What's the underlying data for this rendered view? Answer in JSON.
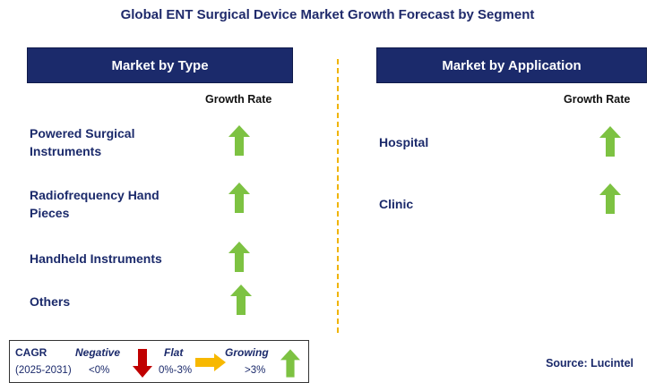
{
  "title": "Global ENT Surgical Device Market Growth Forecast by Segment",
  "left_panel": {
    "header": "Market by Type",
    "growth_rate_label": "Growth Rate",
    "items": [
      {
        "label_line1": "Powered Surgical",
        "label_line2": "Instruments",
        "trend": "growing"
      },
      {
        "label_line1": "Radiofrequency Hand",
        "label_line2": "Pieces",
        "trend": "growing"
      },
      {
        "label_line1": "Handheld Instruments",
        "label_line2": "",
        "trend": "growing"
      },
      {
        "label_line1": "Others",
        "label_line2": "",
        "trend": "growing"
      }
    ]
  },
  "right_panel": {
    "header": "Market by Application",
    "growth_rate_label": "Growth Rate",
    "items": [
      {
        "label_line1": "Hospital",
        "trend": "growing"
      },
      {
        "label_line1": "Clinic",
        "trend": "growing"
      }
    ]
  },
  "legend": {
    "cagr_label": "CAGR",
    "period": "(2025-2031)",
    "negative_label": "Negative",
    "negative_value": "<0%",
    "flat_label": "Flat",
    "flat_value": "0%-3%",
    "growing_label": "Growing",
    "growing_value": ">3%"
  },
  "source": "Source: Lucintel",
  "colors": {
    "header_bg": "#1b2a6b",
    "up_arrow": "#7dc242",
    "down_arrow": "#c00000",
    "flat_arrow": "#f7b800",
    "divider": "#f0b400"
  }
}
